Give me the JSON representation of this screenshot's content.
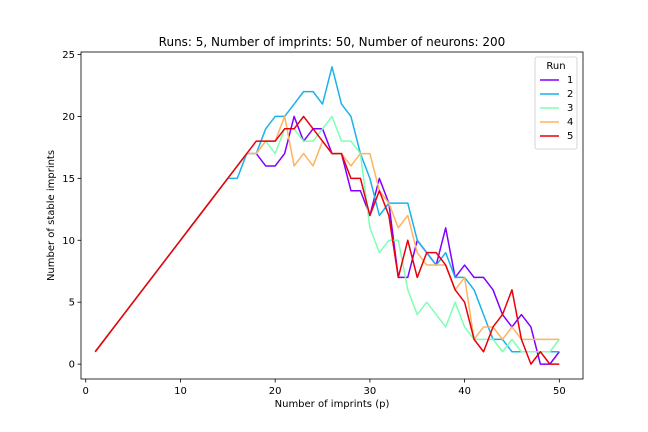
{
  "chart_data": {
    "type": "line",
    "title": "Runs: 5, Number of imprints: 50, Number of neurons: 200",
    "xlabel": "Number of imprints (p)",
    "ylabel": "Number of stable imprints",
    "xlim": [
      -0.5,
      52.5
    ],
    "ylim": [
      -1.2,
      25.2
    ],
    "xticks": [
      0,
      10,
      20,
      30,
      40,
      50
    ],
    "yticks": [
      0,
      5,
      10,
      15,
      20,
      25
    ],
    "grid": false,
    "legend": {
      "title": "Run",
      "position": "top-right"
    },
    "x": [
      1,
      2,
      3,
      4,
      5,
      6,
      7,
      8,
      9,
      10,
      11,
      12,
      13,
      14,
      15,
      16,
      17,
      18,
      19,
      20,
      21,
      22,
      23,
      24,
      25,
      26,
      27,
      28,
      29,
      30,
      31,
      32,
      33,
      34,
      35,
      36,
      37,
      38,
      39,
      40,
      41,
      42,
      43,
      44,
      45,
      46,
      47,
      48,
      49,
      50
    ],
    "series": [
      {
        "name": "1",
        "color": "#8000ff",
        "values": [
          1,
          2,
          3,
          4,
          5,
          6,
          7,
          8,
          9,
          10,
          11,
          12,
          13,
          14,
          15,
          16,
          17,
          17,
          16,
          16,
          17,
          20,
          18,
          19,
          19,
          17,
          17,
          14,
          14,
          12,
          15,
          13,
          7,
          7,
          10,
          9,
          8,
          11,
          7,
          8,
          7,
          7,
          6,
          4,
          3,
          4,
          3,
          0,
          0,
          1
        ]
      },
      {
        "name": "2",
        "color": "#1ab2eb",
        "values": [
          1,
          2,
          3,
          4,
          5,
          6,
          7,
          8,
          9,
          10,
          11,
          12,
          13,
          14,
          15,
          15,
          17,
          17,
          19,
          20,
          20,
          21,
          22,
          22,
          21,
          24,
          21,
          20,
          17,
          15,
          12,
          13,
          13,
          13,
          10,
          9,
          8,
          9,
          7,
          7,
          6,
          4,
          2,
          2,
          1,
          1,
          1,
          1,
          1,
          1
        ]
      },
      {
        "name": "3",
        "color": "#80ffb4",
        "values": [
          1,
          2,
          3,
          4,
          5,
          6,
          7,
          8,
          9,
          10,
          11,
          12,
          13,
          14,
          15,
          16,
          17,
          17,
          18,
          17,
          19,
          19,
          18,
          18,
          19,
          20,
          18,
          18,
          17,
          11,
          9,
          10,
          10,
          6,
          4,
          5,
          4,
          3,
          5,
          3,
          2,
          2,
          2,
          1,
          2,
          1,
          1,
          1,
          1,
          2
        ]
      },
      {
        "name": "4",
        "color": "#ffb360",
        "values": [
          1,
          2,
          3,
          4,
          5,
          6,
          7,
          8,
          9,
          10,
          11,
          12,
          13,
          14,
          15,
          16,
          17,
          17,
          18,
          18,
          20,
          16,
          17,
          16,
          18,
          17,
          17,
          16,
          17,
          17,
          14,
          13,
          11,
          12,
          9,
          8,
          8,
          8,
          6,
          7,
          2,
          3,
          3,
          2,
          3,
          2,
          2,
          2,
          2,
          2
        ]
      },
      {
        "name": "5",
        "color": "#e8000b",
        "values": [
          1,
          2,
          3,
          4,
          5,
          6,
          7,
          8,
          9,
          10,
          11,
          12,
          13,
          14,
          15,
          16,
          17,
          18,
          18,
          18,
          19,
          19,
          20,
          19,
          18,
          17,
          17,
          15,
          15,
          12,
          14,
          12,
          7,
          10,
          7,
          9,
          9,
          8,
          6,
          5,
          2,
          1,
          3,
          4,
          6,
          2,
          0,
          1,
          0,
          0
        ]
      }
    ]
  }
}
